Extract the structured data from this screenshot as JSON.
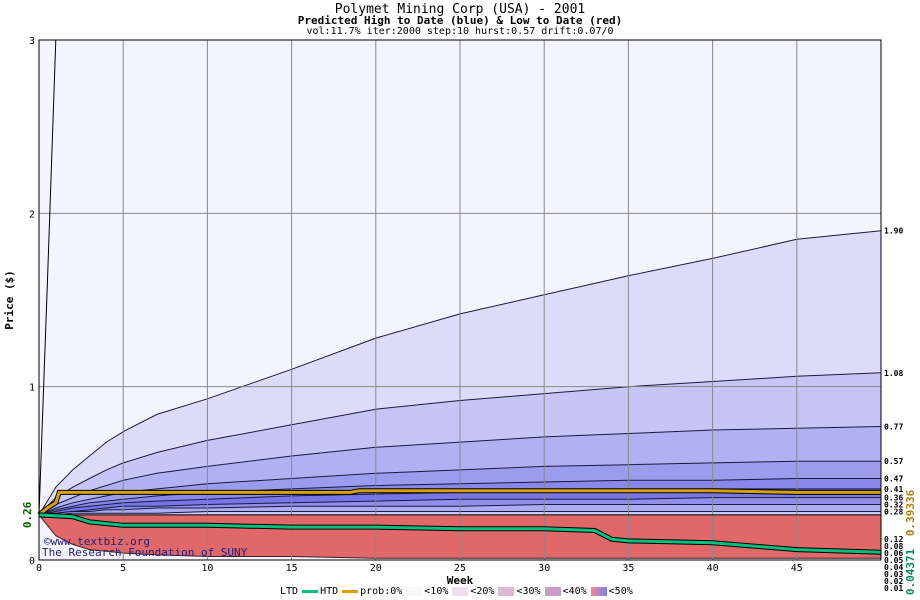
{
  "title": "Polymet Mining Corp (USA) - 2001",
  "subtitle": "Predicted High to Date (blue) &  Low to Date (red)",
  "params": "vol:11.7% iter:2000 step:10 hurst:0.57 drift:0.07/0",
  "watermark_url": "www.textbiz.org",
  "watermark_org": "The Research Foundation of SUNY",
  "colors": {
    "plot_bg": "#f4f4ff",
    "grid": "#888888",
    "htd": "#d8a000",
    "ltd": "#00c080",
    "start_label": "#006000",
    "htd_value": "#b08000",
    "ltd_value": "#009060"
  },
  "legend": {
    "ltd": "LTD",
    "htd": "HTD",
    "prob": "prob:0%",
    "b10": "<10%",
    "b20": "<20%",
    "b30": "<30%",
    "b40": "<40%",
    "b50": "<50%"
  },
  "chart_data": {
    "type": "area",
    "title": "Polymet Mining Corp (USA) - 2001",
    "xlabel": "Week",
    "ylabel": "Price ($)",
    "xlim": [
      0,
      50
    ],
    "ylim": [
      0,
      3
    ],
    "x_ticks": [
      0,
      5,
      10,
      15,
      20,
      25,
      30,
      35,
      40,
      45
    ],
    "y_ticks": [
      0,
      1,
      2,
      3
    ],
    "grid": true,
    "start_price": 0.26,
    "start_price_label": "0.26",
    "htd_final": "0.39336",
    "ltd_final": "0.04371",
    "x": [
      0,
      1,
      2,
      3,
      4,
      5,
      7,
      10,
      15,
      20,
      25,
      30,
      35,
      40,
      45,
      50
    ],
    "high_bands": [
      {
        "label": "1.90",
        "values": [
          0.26,
          0.42,
          0.52,
          0.6,
          0.68,
          0.74,
          0.84,
          0.93,
          1.1,
          1.28,
          1.42,
          1.53,
          1.64,
          1.74,
          1.85,
          1.9
        ]
      },
      {
        "label": "1.08",
        "values": [
          0.26,
          0.36,
          0.42,
          0.47,
          0.52,
          0.56,
          0.62,
          0.69,
          0.78,
          0.87,
          0.92,
          0.96,
          1.0,
          1.03,
          1.06,
          1.08
        ]
      },
      {
        "label": "0.77",
        "values": [
          0.26,
          0.32,
          0.36,
          0.4,
          0.43,
          0.46,
          0.5,
          0.54,
          0.6,
          0.65,
          0.68,
          0.71,
          0.73,
          0.75,
          0.76,
          0.77
        ]
      },
      {
        "label": "0.57",
        "values": [
          0.26,
          0.3,
          0.33,
          0.35,
          0.37,
          0.39,
          0.41,
          0.44,
          0.47,
          0.5,
          0.52,
          0.54,
          0.55,
          0.56,
          0.57,
          0.57
        ]
      },
      {
        "label": "0.47",
        "values": [
          0.26,
          0.29,
          0.31,
          0.33,
          0.34,
          0.35,
          0.37,
          0.39,
          0.41,
          0.43,
          0.44,
          0.45,
          0.46,
          0.46,
          0.47,
          0.47
        ]
      },
      {
        "label": "0.41",
        "values": [
          0.26,
          0.28,
          0.3,
          0.31,
          0.32,
          0.33,
          0.34,
          0.35,
          0.37,
          0.38,
          0.39,
          0.4,
          0.4,
          0.41,
          0.41,
          0.41
        ]
      },
      {
        "label": "0.36",
        "values": [
          0.26,
          0.27,
          0.28,
          0.29,
          0.3,
          0.31,
          0.31,
          0.32,
          0.33,
          0.34,
          0.35,
          0.35,
          0.35,
          0.36,
          0.36,
          0.36
        ]
      },
      {
        "label": "0.32",
        "values": [
          0.26,
          0.27,
          0.28,
          0.28,
          0.29,
          0.29,
          0.3,
          0.3,
          0.31,
          0.31,
          0.31,
          0.32,
          0.32,
          0.32,
          0.32,
          0.32
        ]
      },
      {
        "label": "0.28",
        "values": [
          0.26,
          0.26,
          0.27,
          0.27,
          0.27,
          0.27,
          0.27,
          0.28,
          0.28,
          0.28,
          0.28,
          0.28,
          0.28,
          0.28,
          0.28,
          0.28
        ]
      }
    ],
    "low_bands": [
      {
        "label": "0.12",
        "values": [
          0.26,
          0.24,
          0.23,
          0.22,
          0.21,
          0.2,
          0.19,
          0.18,
          0.16,
          0.15,
          0.14,
          0.13,
          0.13,
          0.12,
          0.12,
          0.12
        ]
      },
      {
        "label": "0.08",
        "values": [
          0.26,
          0.23,
          0.21,
          0.2,
          0.18,
          0.17,
          0.16,
          0.14,
          0.13,
          0.11,
          0.1,
          0.09,
          0.09,
          0.08,
          0.08,
          0.08
        ]
      },
      {
        "label": "0.06",
        "values": [
          0.26,
          0.22,
          0.2,
          0.18,
          0.17,
          0.15,
          0.14,
          0.12,
          0.1,
          0.09,
          0.08,
          0.07,
          0.07,
          0.06,
          0.06,
          0.06
        ]
      },
      {
        "label": "0.05",
        "values": [
          0.26,
          0.21,
          0.19,
          0.17,
          0.15,
          0.14,
          0.12,
          0.1,
          0.09,
          0.08,
          0.07,
          0.06,
          0.06,
          0.05,
          0.05,
          0.05
        ]
      },
      {
        "label": "0.04",
        "values": [
          0.26,
          0.2,
          0.17,
          0.15,
          0.13,
          0.12,
          0.1,
          0.08,
          0.07,
          0.06,
          0.05,
          0.05,
          0.04,
          0.04,
          0.04,
          0.04
        ]
      },
      {
        "label": "0.03",
        "values": [
          0.26,
          0.19,
          0.16,
          0.13,
          0.11,
          0.1,
          0.08,
          0.07,
          0.05,
          0.04,
          0.04,
          0.03,
          0.03,
          0.03,
          0.03,
          0.03
        ]
      },
      {
        "label": "0.02",
        "values": [
          0.26,
          0.17,
          0.13,
          0.1,
          0.08,
          0.07,
          0.05,
          0.04,
          0.03,
          0.03,
          0.02,
          0.02,
          0.02,
          0.02,
          0.02,
          0.02
        ]
      },
      {
        "label": "0.01",
        "values": [
          0.26,
          0.14,
          0.09,
          0.06,
          0.05,
          0.04,
          0.03,
          0.02,
          0.02,
          0.01,
          0.01,
          0.01,
          0.01,
          0.01,
          0.01,
          0.01
        ]
      }
    ],
    "htd_path": {
      "x": [
        0,
        0.5,
        1,
        1.2,
        5,
        10,
        15,
        18.5,
        19,
        25,
        30,
        35,
        40,
        45,
        50
      ],
      "y": [
        0.26,
        0.3,
        0.33,
        0.39,
        0.39,
        0.39,
        0.39,
        0.39,
        0.4,
        0.4,
        0.4,
        0.4,
        0.4,
        0.39,
        0.39
      ]
    },
    "ltd_path": {
      "x": [
        0,
        2,
        3,
        4,
        5,
        10,
        15,
        20,
        25,
        30,
        33,
        34,
        35,
        40,
        45,
        50
      ],
      "y": [
        0.26,
        0.25,
        0.22,
        0.21,
        0.2,
        0.2,
        0.19,
        0.19,
        0.18,
        0.18,
        0.17,
        0.12,
        0.11,
        0.1,
        0.06,
        0.045
      ]
    },
    "spike_path": {
      "x": [
        0,
        0.5,
        1
      ],
      "y": [
        0.26,
        1.6,
        3.0
      ]
    }
  }
}
